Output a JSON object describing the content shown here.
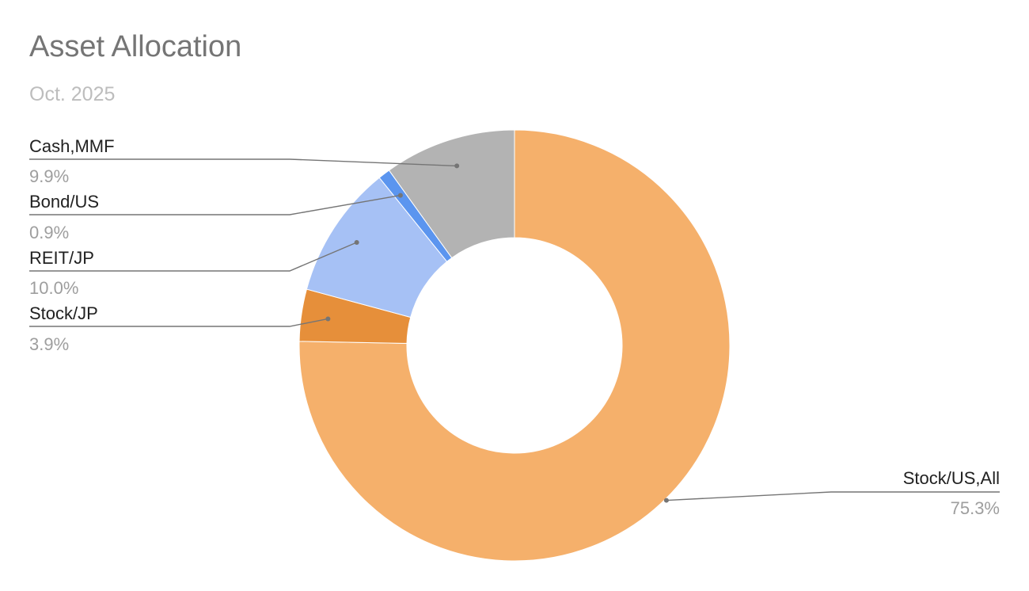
{
  "chart_data": {
    "type": "pie",
    "donut": true,
    "title": "Asset Allocation",
    "subtitle": "Oct. 2025",
    "slices": [
      {
        "label": "Stock/US,All",
        "value": 75.3,
        "display": "75.3%",
        "color": "#f5b06b"
      },
      {
        "label": "Stock/JP",
        "value": 3.9,
        "display": "3.9%",
        "color": "#e68f3a"
      },
      {
        "label": "REIT/JP",
        "value": 10.0,
        "display": "10.0%",
        "color": "#a6c1f5"
      },
      {
        "label": "Bond/US",
        "value": 0.9,
        "display": "0.9%",
        "color": "#5b95ef"
      },
      {
        "label": "Cash,MMF",
        "value": 9.9,
        "display": "9.9%",
        "color": "#b3b3b3"
      }
    ],
    "direction": "clockwise",
    "start": "top",
    "legend": "labeled slices"
  }
}
